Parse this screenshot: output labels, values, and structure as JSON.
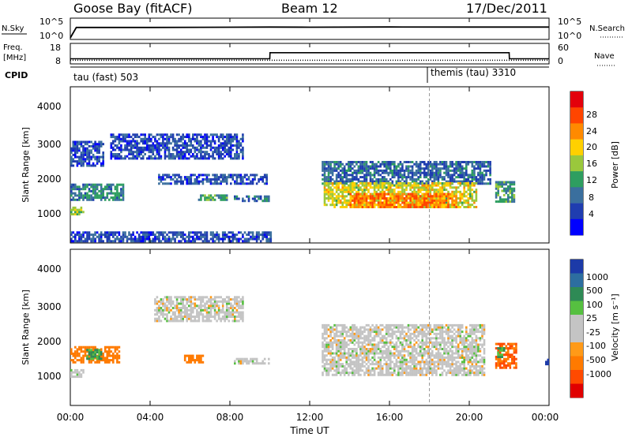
{
  "header": {
    "station": "Goose Bay (fitACF)",
    "beam": "Beam 12",
    "date": "17/Dec/2011"
  },
  "strip": {
    "nsky_label": "N.Sky",
    "nsky_ticks": [
      "10^5",
      "10^0"
    ],
    "nsearch_label": "N.Search",
    "nsearch_ticks": [
      "10^5",
      "10^0"
    ],
    "freq_label": "Freq.",
    "freq_unit": "[MHz]",
    "freq_ticks": [
      "18",
      "8"
    ],
    "nave_label": "Nave",
    "nave_ticks": [
      "60",
      "0"
    ],
    "cpid_label": "CPID",
    "cpid_modes": [
      {
        "name": "tau (fast) 503",
        "start_hour": 0
      },
      {
        "name": "themis (tau) 3310",
        "start_hour": 18
      }
    ]
  },
  "axes": {
    "ylabel": "Slant Range [km]",
    "xlabel": "Time UT",
    "x_ticks": [
      "00:00",
      "04:00",
      "08:00",
      "12:00",
      "16:00",
      "20:00",
      "00:00"
    ],
    "y_ticks": [
      "1000",
      "2000",
      "3000",
      "4000"
    ]
  },
  "colorbars": {
    "power": {
      "label": "Power [dB]",
      "ticks": [
        "28",
        "24",
        "20",
        "16",
        "12",
        "8",
        "4"
      ],
      "colors": [
        "#e3000b",
        "#ff4500",
        "#ff8a00",
        "#ffd000",
        "#9ac83c",
        "#2e9e60",
        "#3a6f9e",
        "#1f3db0",
        "#0000ff"
      ]
    },
    "velocity": {
      "label": "Velocity [m s⁻¹]",
      "ticks": [
        "1000",
        "500",
        "100",
        "25",
        "-25",
        "-100",
        "-500",
        "-1000"
      ],
      "colors": [
        "#1c3aa8",
        "#2d6ea0",
        "#2e8a55",
        "#56c040",
        "#c4c4c4",
        "#c4c4c4",
        "#ff9a18",
        "#ff7a00",
        "#ff4a00",
        "#e00000"
      ]
    }
  },
  "chart_data": [
    {
      "type": "line",
      "title": "N.Sky / N.Search",
      "x_range_hours": [
        0,
        24
      ],
      "y_scale": "log",
      "ylim": [
        1,
        100000
      ],
      "series": [
        {
          "name": "N.Sky",
          "x_hours": [
            0,
            0.3,
            4,
            8,
            10,
            12,
            16,
            20,
            22,
            24
          ],
          "values": [
            1,
            1000,
            1000,
            1200,
            1300,
            1200,
            1400,
            1300,
            1300,
            1300
          ]
        }
      ]
    },
    {
      "type": "line",
      "title": "Freq. / Nave",
      "x_range_hours": [
        0,
        24
      ],
      "ylim": [
        8,
        18
      ],
      "series": [
        {
          "name": "Freq.",
          "x_hours": [
            0,
            10,
            10.01,
            22,
            22.01,
            24
          ],
          "values": [
            10.5,
            10.5,
            14,
            14,
            10.5,
            10.5
          ]
        },
        {
          "name": "Nave",
          "x_hours": [
            0,
            24
          ],
          "values": [
            10,
            10
          ]
        }
      ]
    },
    {
      "type": "heatmap",
      "title": "Power [dB]",
      "x_label": "Time UT",
      "y_label": "Slant Range [km]",
      "x_range_hours": [
        0,
        24
      ],
      "y_range_km": [
        200,
        4500
      ],
      "regions": [
        {
          "t0": 0,
          "t1": 1.7,
          "r0": 2300,
          "r1": 3000,
          "value": 6
        },
        {
          "t0": 0,
          "t1": 2.7,
          "r0": 1350,
          "r1": 1800,
          "value": 10
        },
        {
          "t0": 0,
          "t1": 0.7,
          "r0": 950,
          "r1": 1150,
          "value": 16
        },
        {
          "t0": 2,
          "t1": 8.6,
          "r0": 2500,
          "r1": 3200,
          "value": 6
        },
        {
          "t0": 4.4,
          "t1": 9.8,
          "r0": 1800,
          "r1": 2100,
          "value": 6
        },
        {
          "t0": 6.4,
          "t1": 7.8,
          "r0": 1350,
          "r1": 1500,
          "value": 12
        },
        {
          "t0": 8.2,
          "t1": 9.9,
          "r0": 1320,
          "r1": 1450,
          "value": 8
        },
        {
          "t0": 12.6,
          "t1": 21.1,
          "r0": 1800,
          "r1": 2450,
          "value": 8
        },
        {
          "t0": 12.7,
          "t1": 20.4,
          "r0": 1150,
          "r1": 1850,
          "value": 18
        },
        {
          "t0": 14,
          "t1": 19.4,
          "r0": 1150,
          "r1": 1550,
          "value": 24
        },
        {
          "t0": 21.3,
          "t1": 22.3,
          "r0": 1300,
          "r1": 1900,
          "value": 12
        },
        {
          "t0": 0,
          "t1": 10,
          "r0": 200,
          "r1": 500,
          "value": 6
        }
      ]
    },
    {
      "type": "heatmap",
      "title": "Velocity [m s^-1]",
      "x_label": "Time UT",
      "y_label": "Slant Range [km]",
      "x_range_hours": [
        0,
        24
      ],
      "y_range_km": [
        200,
        4500
      ],
      "regions": [
        {
          "t0": 0,
          "t1": 2.5,
          "r0": 1350,
          "r1": 1800,
          "value": -300
        },
        {
          "t0": 0.8,
          "t1": 1.6,
          "r0": 1450,
          "r1": 1700,
          "value": 100
        },
        {
          "t0": 0,
          "t1": 0.7,
          "r0": 950,
          "r1": 1150,
          "value": 0
        },
        {
          "t0": 4.2,
          "t1": 8.6,
          "r0": 2500,
          "r1": 3200,
          "value": 0
        },
        {
          "t0": 5.7,
          "t1": 6.6,
          "r0": 1350,
          "r1": 1550,
          "value": -150
        },
        {
          "t0": 8.2,
          "t1": 9.9,
          "r0": 1320,
          "r1": 1450,
          "value": 0
        },
        {
          "t0": 12.6,
          "t1": 20.8,
          "r0": 1000,
          "r1": 2400,
          "value": 0
        },
        {
          "t0": 21.3,
          "t1": 22.4,
          "r0": 1200,
          "r1": 1900,
          "value": -500
        },
        {
          "t0": 21.4,
          "t1": 21.8,
          "r0": 1500,
          "r1": 1800,
          "value": 100
        },
        {
          "t0": 23.8,
          "t1": 24,
          "r0": 1300,
          "r1": 1450,
          "value": 1000
        }
      ]
    }
  ]
}
